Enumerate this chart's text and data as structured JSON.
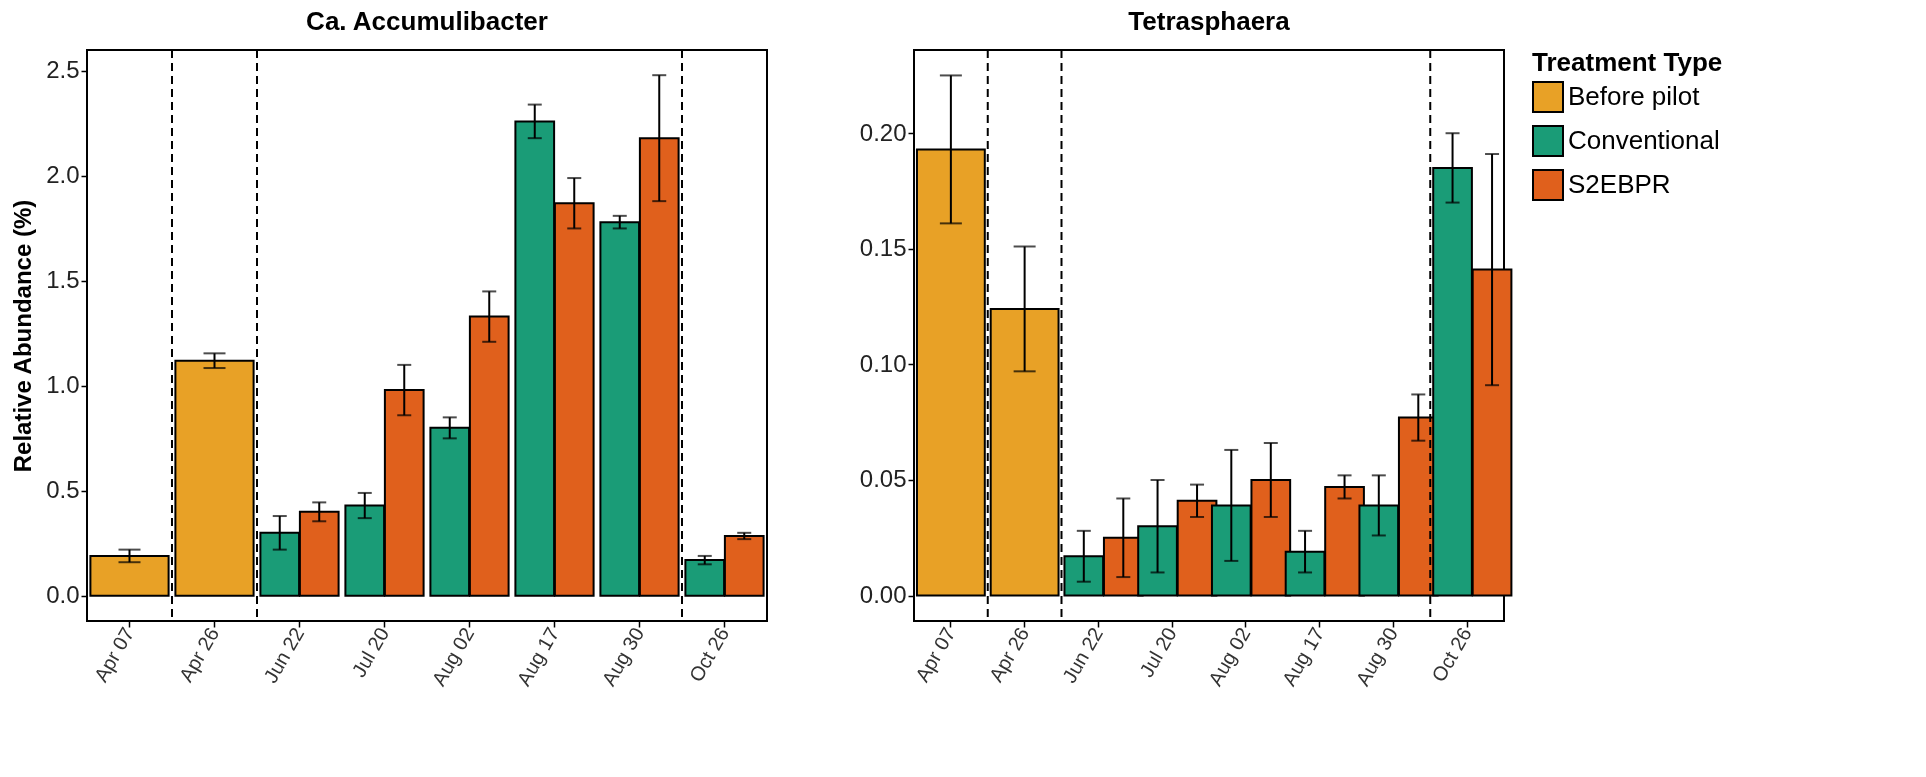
{
  "chart_data": [
    {
      "type": "bar",
      "title": "Ca. Accumulibacter",
      "ylabel": "Relative Abundance (%)",
      "categories": [
        "Apr 07",
        "Apr 26",
        "Jun 22",
        "Jul 20",
        "Aug 02",
        "Aug 17",
        "Aug 30",
        "Oct 26"
      ],
      "series": [
        {
          "name": "Before pilot",
          "color": "#e8a126",
          "values": [
            0.19,
            1.12,
            null,
            null,
            null,
            null,
            null,
            null
          ],
          "errors": [
            0.03,
            0.035,
            null,
            null,
            null,
            null,
            null,
            null
          ]
        },
        {
          "name": "Conventional",
          "color": "#1a9c77",
          "values": [
            null,
            null,
            0.3,
            0.43,
            0.8,
            2.26,
            1.78,
            0.17
          ],
          "errors": [
            null,
            null,
            0.08,
            0.06,
            0.05,
            0.08,
            0.03,
            0.02
          ]
        },
        {
          "name": "S2EBPR",
          "color": "#e0601c",
          "values": [
            null,
            null,
            0.4,
            0.98,
            1.33,
            1.87,
            2.18,
            0.285
          ],
          "errors": [
            null,
            null,
            0.045,
            0.12,
            0.12,
            0.12,
            0.3,
            0.015
          ]
        }
      ],
      "ylim": [
        -0.12,
        2.6
      ],
      "yticks": [
        {
          "value": 0,
          "label": "0.0"
        },
        {
          "value": 0.5,
          "label": "0.5"
        },
        {
          "value": 1,
          "label": "1.0"
        },
        {
          "value": 1.5,
          "label": "1.5"
        },
        {
          "value": 2,
          "label": "2.0"
        },
        {
          "value": 2.5,
          "label": "2.5"
        }
      ],
      "legend": "right"
    },
    {
      "type": "bar",
      "title": "Tetrasphaera",
      "categories": [
        "Apr 07",
        "Apr 26",
        "Jun 22",
        "Jul 20",
        "Aug 02",
        "Aug 17",
        "Aug 30",
        "Oct 26"
      ],
      "series": [
        {
          "name": "Before pilot",
          "color": "#e8a126",
          "values": [
            0.193,
            0.124,
            null,
            null,
            null,
            null,
            null,
            null
          ],
          "errors": [
            0.032,
            0.027,
            null,
            null,
            null,
            null,
            null,
            null
          ]
        },
        {
          "name": "Conventional",
          "color": "#1a9c77",
          "values": [
            null,
            null,
            0.017,
            0.03,
            0.039,
            0.019,
            0.039,
            0.185
          ],
          "errors": [
            null,
            null,
            0.011,
            0.02,
            0.024,
            0.009,
            0.013,
            0.015
          ]
        },
        {
          "name": "S2EBPR",
          "color": "#e0601c",
          "values": [
            null,
            null,
            0.025,
            0.041,
            0.05,
            0.047,
            0.077,
            0.141
          ],
          "errors": [
            null,
            null,
            0.017,
            0.007,
            0.016,
            0.005,
            0.01,
            0.05
          ]
        }
      ],
      "ylim": [
        -0.011,
        0.236
      ],
      "yticks": [
        {
          "value": 0,
          "label": "0.00"
        },
        {
          "value": 0.05,
          "label": "0.05"
        },
        {
          "value": 0.1,
          "label": "0.10"
        },
        {
          "value": 0.15,
          "label": "0.15"
        },
        {
          "value": 0.2,
          "label": "0.20"
        }
      ],
      "legend": "right",
      "legend_title": "Treatment Type"
    }
  ]
}
